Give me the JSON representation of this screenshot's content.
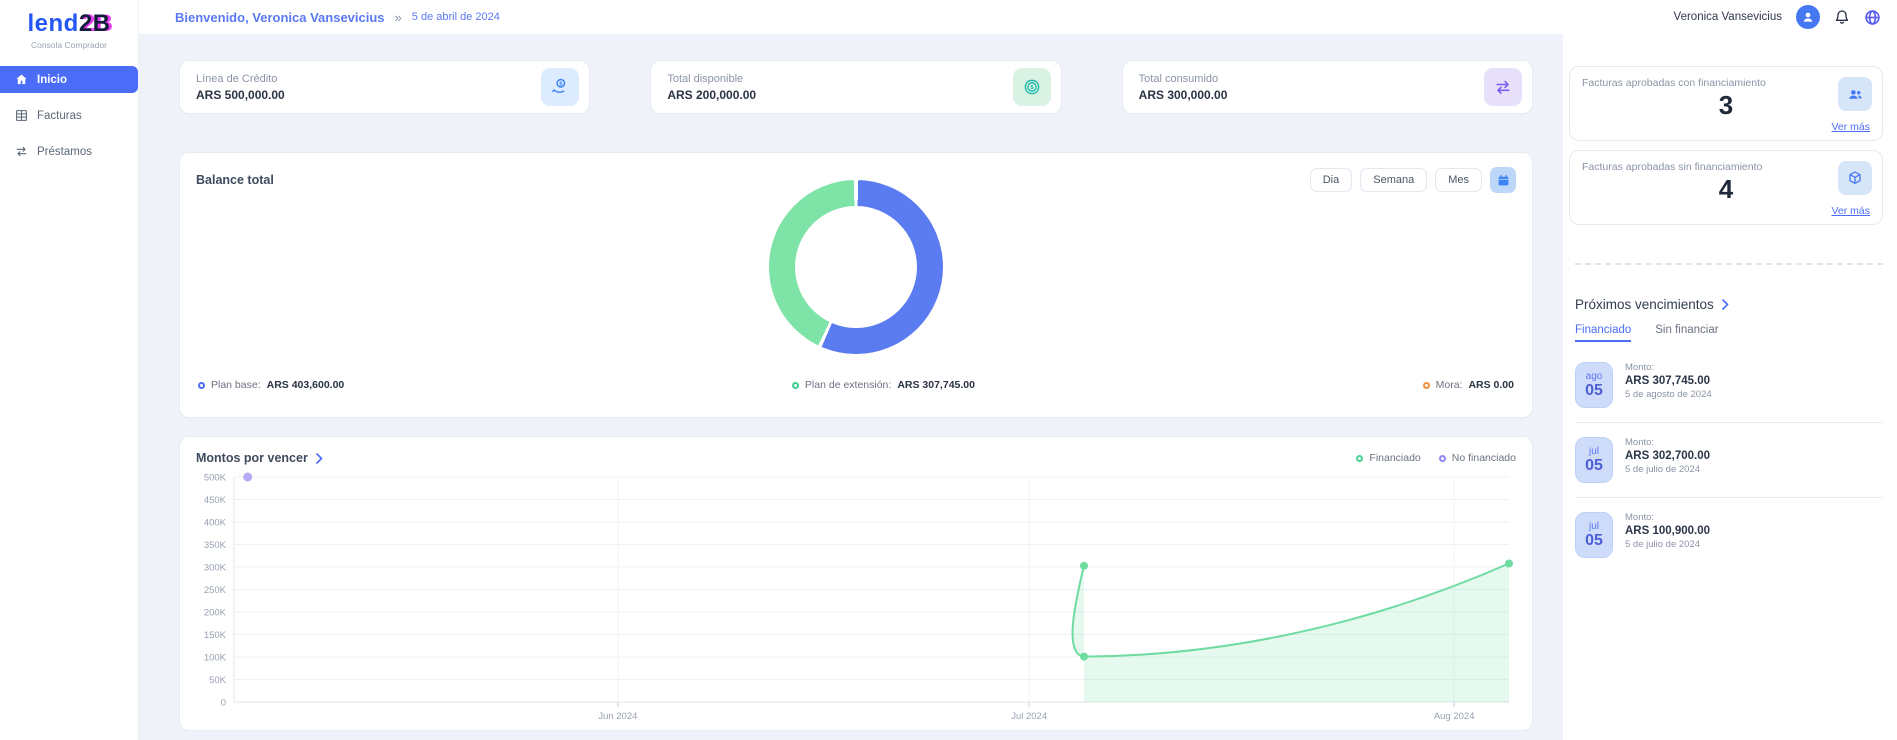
{
  "brand": {
    "name_blue": "lend",
    "name_dark": "2B",
    "subtitle": "Consola Comprador"
  },
  "sidebar": {
    "items": [
      {
        "label": "Inicio",
        "icon": "home-icon",
        "active": true
      },
      {
        "label": "Facturas",
        "icon": "invoices-grid-icon",
        "active": false
      },
      {
        "label": "Préstamos",
        "icon": "loans-swap-icon",
        "active": false
      }
    ]
  },
  "header": {
    "welcome": "Bienvenido, Veronica Vansevicius",
    "separator": "»",
    "date": "5 de abril de 2024",
    "user_name": "Veronica Vansevicius"
  },
  "stats": [
    {
      "label": "Línea de Crédito",
      "value": "ARS 500,000.00",
      "icon": "hand-coin-icon",
      "icon_color": "#3b82f6"
    },
    {
      "label": "Total disponible",
      "value": "ARS 200,000.00",
      "icon": "coin-icon",
      "icon_color": "#14b8a6"
    },
    {
      "label": "Total consumido",
      "value": "ARS 300,000.00",
      "icon": "transfer-arrows-icon",
      "icon_color": "#7c5cf0"
    }
  ],
  "balance": {
    "title": "Balance total",
    "buttons": [
      "Dia",
      "Semana",
      "Mes"
    ],
    "legend": [
      {
        "label": "Plan base:",
        "value": "ARS 403,600.00",
        "color": "#4c6ef5"
      },
      {
        "label": "Plan de extensión:",
        "value": "ARS 307,745.00",
        "color": "#3ecf8e"
      },
      {
        "label": "Mora:",
        "value": "ARS 0.00",
        "color": "#f08c3a"
      }
    ]
  },
  "montos": {
    "title": "Montos por vencer",
    "legend": [
      {
        "label": "Financiado",
        "color": "#49d492"
      },
      {
        "label": "No financiado",
        "color": "#8f86f2"
      }
    ]
  },
  "approvals": [
    {
      "title": "Facturas aprobadas con financiamiento",
      "count": "3",
      "link_label": "Ver más",
      "icon": "users-icon"
    },
    {
      "title": "Facturas aprobadas sin financiamiento",
      "count": "4",
      "link_label": "Ver más",
      "icon": "cube-icon"
    }
  ],
  "upcoming": {
    "title": "Próximos vencimientos",
    "tabs": [
      {
        "label": "Financiado",
        "active": true
      },
      {
        "label": "Sin financiar",
        "active": false
      }
    ],
    "amount_label": "Monto:",
    "items": [
      {
        "month": "ago",
        "day": "05",
        "amount": "ARS 307,745.00",
        "date": "5 de agosto de 2024"
      },
      {
        "month": "jul",
        "day": "05",
        "amount": "ARS 302,700.00",
        "date": "5 de julio de 2024"
      },
      {
        "month": "jul",
        "day": "05",
        "amount": "ARS 100,900.00",
        "date": "5 de julio de 2024"
      }
    ]
  },
  "chart_data": [
    {
      "type": "pie",
      "title": "Balance total",
      "donut": true,
      "slices": [
        {
          "label": "Plan base",
          "value": 403600,
          "color": "#5b7cf0"
        },
        {
          "label": "Plan de extensión",
          "value": 307745,
          "color": "#7de3a7"
        },
        {
          "label": "Mora",
          "value": 0,
          "color": "#f08c3a"
        }
      ]
    },
    {
      "type": "area",
      "title": "Montos por vencer",
      "ylim": [
        0,
        500000
      ],
      "yticks": [
        "500K",
        "450K",
        "400K",
        "350K",
        "300K",
        "250K",
        "200K",
        "150K",
        "100K",
        "50K",
        "0"
      ],
      "xlim": [
        "2024-05-04",
        "2024-08-05"
      ],
      "xticks": [
        {
          "label": "Jun 2024",
          "date": "2024-06-01"
        },
        {
          "label": "Jul 2024",
          "date": "2024-07-01"
        },
        {
          "label": "Aug 2024",
          "date": "2024-08-01"
        }
      ],
      "grid": true,
      "legend_position": "top-right",
      "series": [
        {
          "name": "Financiado",
          "color": "#6edba1",
          "fill": "rgba(110,219,161,0.18)",
          "points": [
            {
              "date": "2024-07-05",
              "value": 302700
            },
            {
              "date": "2024-07-05",
              "value": 100900
            },
            {
              "date": "2024-08-05",
              "value": 307745
            }
          ]
        },
        {
          "name": "No financiado",
          "color": "#b5aaf6",
          "points": [
            {
              "date": "2024-05-05",
              "value": 500000
            }
          ]
        }
      ]
    }
  ]
}
